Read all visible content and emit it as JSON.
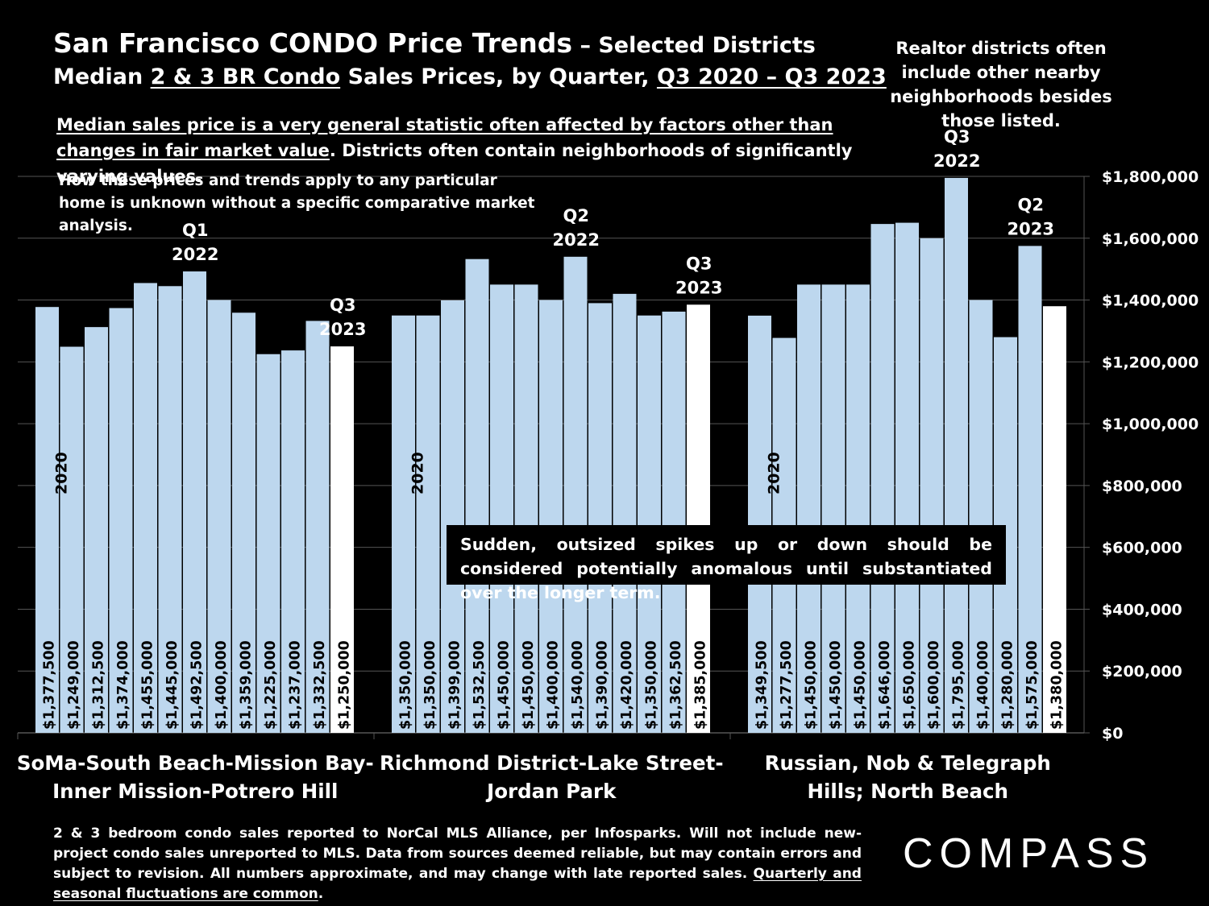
{
  "header": {
    "title_main": "San Francisco CONDO Price Trends",
    "title_sub": " – Selected Districts",
    "subtitle_pre": "Median ",
    "subtitle_u1": "2 & 3 BR Condo",
    "subtitle_mid": " Sales Prices, by Quarter, ",
    "subtitle_u2": "Q3 2020 – Q3 2023"
  },
  "notes": {
    "right": "Realtor districts often include other nearby neighborhoods besides those listed.",
    "main_underlined": "Median sales price is a very general statistic often affected by factors other than changes in fair market value",
    "main_rest": ". Districts often contain neighborhoods of significantly varying values.",
    "small": "How these prices and trends apply to any particular home is unknown without a specific comparative market analysis.",
    "callout": "Sudden, outsized spikes up or down should be considered potentially anomalous until substantiated over the longer term."
  },
  "footer": {
    "text": "2 & 3 bedroom condo sales reported to NorCal MLS Alliance, per Infosparks. Will not include new-project condo sales unreported to MLS. Data from sources deemed reliable, but may contain errors and subject to revision. All numbers approximate, and may change with late reported sales. ",
    "underlined": "Quarterly and seasonal fluctuations are common",
    "end": "."
  },
  "logo": "COMPASS",
  "colors": {
    "background": "#000000",
    "bar": "#bdd7ee",
    "latest_bar": "#ffffff",
    "text": "#ffffff",
    "gridline": "#555555"
  },
  "chart_data": {
    "type": "bar",
    "ylim": [
      0,
      1800000
    ],
    "y_ticks": [
      "$0",
      "$200,000",
      "$400,000",
      "$600,000",
      "$800,000",
      "$1,000,000",
      "$1,200,000",
      "$1,400,000",
      "$1,600,000",
      "$1,800,000"
    ],
    "grid": "horizontal",
    "groups": [
      {
        "name": [
          "SoMa-South Beach-Mission Bay-",
          "Inner Mission-Potrero Hill"
        ],
        "start_label": "2020",
        "values": [
          1377500,
          1249000,
          1312500,
          1374000,
          1455000,
          1445000,
          1492500,
          1400000,
          1359000,
          1225000,
          1237000,
          1332500,
          1250000
        ],
        "labels": [
          "$1,377,500",
          "$1,249,000",
          "$1,312,500",
          "$1,374,000",
          "$1,455,000",
          "$1,445,000",
          "$1,492,500",
          "$1,400,000",
          "$1,359,000",
          "$1,225,000",
          "$1,237,000",
          "$1,332,500",
          "$1,250,000"
        ],
        "annotations": [
          {
            "index": 6,
            "text": [
              "Q1",
              "2022"
            ]
          },
          {
            "index": 12,
            "text": [
              "Q3",
              "2023"
            ]
          }
        ]
      },
      {
        "name": [
          "Richmond District-Lake Street-",
          "Jordan Park"
        ],
        "start_label": "2020",
        "values": [
          1350000,
          1350000,
          1399000,
          1532500,
          1450000,
          1450000,
          1400000,
          1540000,
          1390000,
          1420000,
          1350000,
          1362500,
          1385000
        ],
        "labels": [
          "$1,350,000",
          "$1,350,000",
          "$1,399,000",
          "$1,532,500",
          "$1,450,000",
          "$1,450,000",
          "$1,400,000",
          "$1,540,000",
          "$1,390,000",
          "$1,420,000",
          "$1,350,000",
          "$1,362,500",
          "$1,385,000"
        ],
        "annotations": [
          {
            "index": 7,
            "text": [
              "Q2",
              "2022"
            ]
          },
          {
            "index": 12,
            "text": [
              "Q3",
              "2023"
            ]
          }
        ]
      },
      {
        "name": [
          "Russian, Nob & Telegraph",
          "Hills; North Beach"
        ],
        "start_label": "2020",
        "values": [
          1349500,
          1277500,
          1450000,
          1450000,
          1450000,
          1646000,
          1650000,
          1600000,
          1795000,
          1400000,
          1280000,
          1575000,
          1380000
        ],
        "labels": [
          "$1,349,500",
          "$1,277,500",
          "$1,450,000",
          "$1,450,000",
          "$1,450,000",
          "$1,646,000",
          "$1,650,000",
          "$1,600,000",
          "$1,795,000",
          "$1,400,000",
          "$1,280,000",
          "$1,575,000",
          "$1,380,000"
        ],
        "annotations": [
          {
            "index": 8,
            "text": [
              "Q3",
              "2022"
            ]
          },
          {
            "index": 11,
            "text": [
              "Q2",
              "2023"
            ]
          }
        ]
      }
    ]
  }
}
